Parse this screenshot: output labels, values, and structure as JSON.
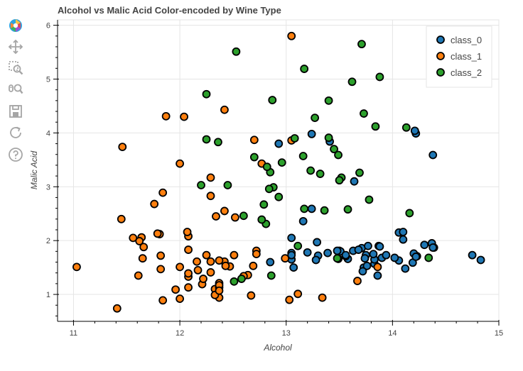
{
  "toolbar": {
    "tools": [
      {
        "name": "bokeh-logo-icon"
      },
      {
        "name": "pan-icon"
      },
      {
        "name": "box-zoom-icon"
      },
      {
        "name": "wheel-zoom-icon"
      },
      {
        "name": "save-icon"
      },
      {
        "name": "reset-icon"
      },
      {
        "name": "help-icon"
      }
    ]
  },
  "colors": {
    "class_0": "#1f77b4",
    "class_1": "#ff7f0e",
    "class_2": "#2ca02c",
    "marker_outline": "#000000",
    "grid": "#e5e5e5"
  },
  "chart_data": {
    "type": "scatter",
    "title": "Alcohol vs Malic Acid Color-encoded by Wine Type",
    "xlabel": "Alcohol",
    "ylabel": "Malic Acid",
    "xlim": [
      10.85,
      15.0
    ],
    "ylim": [
      0.5,
      6.1
    ],
    "xticks": [
      11,
      12,
      13,
      14,
      15
    ],
    "yticks": [
      1,
      2,
      3,
      4,
      5,
      6
    ],
    "grid": true,
    "legend_position": "top-right",
    "series": [
      {
        "name": "class_0",
        "color": "#1f77b4",
        "points": [
          [
            14.23,
            1.71
          ],
          [
            13.2,
            1.78
          ],
          [
            13.16,
            2.36
          ],
          [
            14.37,
            1.95
          ],
          [
            13.24,
            2.59
          ],
          [
            14.2,
            1.76
          ],
          [
            14.39,
            1.87
          ],
          [
            14.06,
            2.15
          ],
          [
            14.83,
            1.64
          ],
          [
            13.86,
            1.35
          ],
          [
            14.1,
            2.16
          ],
          [
            14.12,
            1.48
          ],
          [
            13.75,
            1.73
          ],
          [
            14.75,
            1.73
          ],
          [
            14.38,
            1.87
          ],
          [
            13.63,
            1.81
          ],
          [
            14.3,
            1.92
          ],
          [
            13.83,
            1.57
          ],
          [
            14.19,
            1.59
          ],
          [
            13.64,
            3.1
          ],
          [
            14.06,
            1.63
          ],
          [
            12.93,
            3.8
          ],
          [
            13.71,
            1.86
          ],
          [
            12.85,
            1.6
          ],
          [
            13.5,
            1.81
          ],
          [
            13.05,
            2.05
          ],
          [
            13.39,
            1.77
          ],
          [
            13.3,
            1.72
          ],
          [
            13.87,
            1.9
          ],
          [
            14.02,
            1.68
          ],
          [
            13.73,
            1.5
          ],
          [
            13.58,
            1.66
          ],
          [
            13.68,
            1.83
          ],
          [
            13.76,
            1.53
          ],
          [
            13.51,
            1.8
          ],
          [
            13.48,
            1.81
          ],
          [
            13.28,
            1.64
          ],
          [
            13.05,
            1.65
          ],
          [
            13.07,
            1.5
          ],
          [
            14.22,
            3.99
          ],
          [
            13.56,
            1.71
          ],
          [
            13.41,
            3.84
          ],
          [
            13.88,
            1.89
          ],
          [
            13.24,
            3.98
          ],
          [
            13.05,
            1.77
          ],
          [
            14.21,
            4.04
          ],
          [
            14.38,
            3.59
          ],
          [
            13.9,
            1.68
          ],
          [
            14.1,
            2.02
          ],
          [
            13.94,
            1.73
          ],
          [
            13.05,
            1.73
          ],
          [
            13.83,
            1.65
          ],
          [
            13.82,
            1.75
          ],
          [
            13.77,
            1.9
          ],
          [
            13.74,
            1.67
          ],
          [
            13.56,
            1.73
          ],
          [
            14.22,
            1.7
          ],
          [
            13.29,
            1.97
          ],
          [
            13.72,
            1.43
          ]
        ]
      },
      {
        "name": "class_1",
        "color": "#ff7f0e",
        "points": [
          [
            12.37,
            0.94
          ],
          [
            12.33,
            1.1
          ],
          [
            12.64,
            1.36
          ],
          [
            13.67,
            1.25
          ],
          [
            12.37,
            1.13
          ],
          [
            12.17,
            1.45
          ],
          [
            12.37,
            1.21
          ],
          [
            13.11,
            1.01
          ],
          [
            12.37,
            1.17
          ],
          [
            13.34,
            0.94
          ],
          [
            12.21,
            1.19
          ],
          [
            12.29,
            1.61
          ],
          [
            13.86,
            1.51
          ],
          [
            13.49,
            1.66
          ],
          [
            12.99,
            1.67
          ],
          [
            11.96,
            1.09
          ],
          [
            11.66,
            1.88
          ],
          [
            13.03,
            0.9
          ],
          [
            11.84,
            2.89
          ],
          [
            12.33,
            0.99
          ],
          [
            12.7,
            3.87
          ],
          [
            12.0,
            0.92
          ],
          [
            12.72,
            1.81
          ],
          [
            12.08,
            1.13
          ],
          [
            13.05,
            3.86
          ],
          [
            11.84,
            0.89
          ],
          [
            12.67,
            0.98
          ],
          [
            12.16,
            1.61
          ],
          [
            11.65,
            1.67
          ],
          [
            11.64,
            2.06
          ],
          [
            12.08,
            1.33
          ],
          [
            12.08,
            1.83
          ],
          [
            12.0,
            1.51
          ],
          [
            12.69,
            1.53
          ],
          [
            12.29,
            2.83
          ],
          [
            11.62,
            1.99
          ],
          [
            12.47,
            1.52
          ],
          [
            11.81,
            2.12
          ],
          [
            12.29,
            1.41
          ],
          [
            12.37,
            1.07
          ],
          [
            12.29,
            3.17
          ],
          [
            12.08,
            2.08
          ],
          [
            12.6,
            1.34
          ],
          [
            12.34,
            2.45
          ],
          [
            11.82,
            1.72
          ],
          [
            12.51,
            1.73
          ],
          [
            12.42,
            2.55
          ],
          [
            12.25,
            1.73
          ],
          [
            12.72,
            1.75
          ],
          [
            12.22,
            1.29
          ],
          [
            11.61,
            1.35
          ],
          [
            11.46,
            3.74
          ],
          [
            12.52,
            2.43
          ],
          [
            11.76,
            2.68
          ],
          [
            11.41,
            0.74
          ],
          [
            12.08,
            1.39
          ],
          [
            11.03,
            1.51
          ],
          [
            11.82,
            1.47
          ],
          [
            12.42,
            1.61
          ],
          [
            12.77,
            3.43
          ],
          [
            12.0,
            3.43
          ],
          [
            11.45,
            2.4
          ],
          [
            11.56,
            2.05
          ],
          [
            12.42,
            4.43
          ],
          [
            13.05,
            5.8
          ],
          [
            11.87,
            4.31
          ],
          [
            12.07,
            2.16
          ],
          [
            12.43,
            1.53
          ],
          [
            11.79,
            2.13
          ],
          [
            12.37,
            1.63
          ],
          [
            12.04,
            4.3
          ]
        ]
      },
      {
        "name": "class_2",
        "color": "#2ca02c",
        "points": [
          [
            12.86,
            1.35
          ],
          [
            12.88,
            2.99
          ],
          [
            12.81,
            2.31
          ],
          [
            12.7,
            3.55
          ],
          [
            12.51,
            1.24
          ],
          [
            12.6,
            2.46
          ],
          [
            12.25,
            4.72
          ],
          [
            12.53,
            5.51
          ],
          [
            13.49,
            3.59
          ],
          [
            12.84,
            2.96
          ],
          [
            12.93,
            2.81
          ],
          [
            13.36,
            2.56
          ],
          [
            13.52,
            3.17
          ],
          [
            13.62,
            4.95
          ],
          [
            12.25,
            3.88
          ],
          [
            13.16,
            3.57
          ],
          [
            13.88,
            5.04
          ],
          [
            12.87,
            4.61
          ],
          [
            13.32,
            3.24
          ],
          [
            13.08,
            3.9
          ],
          [
            13.5,
            3.12
          ],
          [
            12.79,
            2.67
          ],
          [
            13.11,
            1.9
          ],
          [
            13.23,
            3.3
          ],
          [
            12.58,
            1.29
          ],
          [
            13.17,
            5.19
          ],
          [
            13.84,
            4.12
          ],
          [
            12.45,
            3.03
          ],
          [
            14.34,
            1.68
          ],
          [
            13.48,
            1.67
          ],
          [
            12.36,
            3.83
          ],
          [
            13.69,
            3.26
          ],
          [
            12.85,
            3.27
          ],
          [
            12.96,
            3.45
          ],
          [
            13.78,
            2.76
          ],
          [
            13.73,
            4.36
          ],
          [
            13.45,
            3.7
          ],
          [
            12.82,
            3.37
          ],
          [
            13.58,
            2.58
          ],
          [
            13.4,
            4.6
          ],
          [
            12.2,
            3.03
          ],
          [
            12.77,
            2.39
          ],
          [
            14.16,
            2.51
          ],
          [
            13.71,
            5.65
          ],
          [
            13.4,
            3.91
          ],
          [
            13.27,
            4.28
          ],
          [
            13.17,
            2.59
          ],
          [
            14.13,
            4.1
          ]
        ]
      }
    ]
  }
}
